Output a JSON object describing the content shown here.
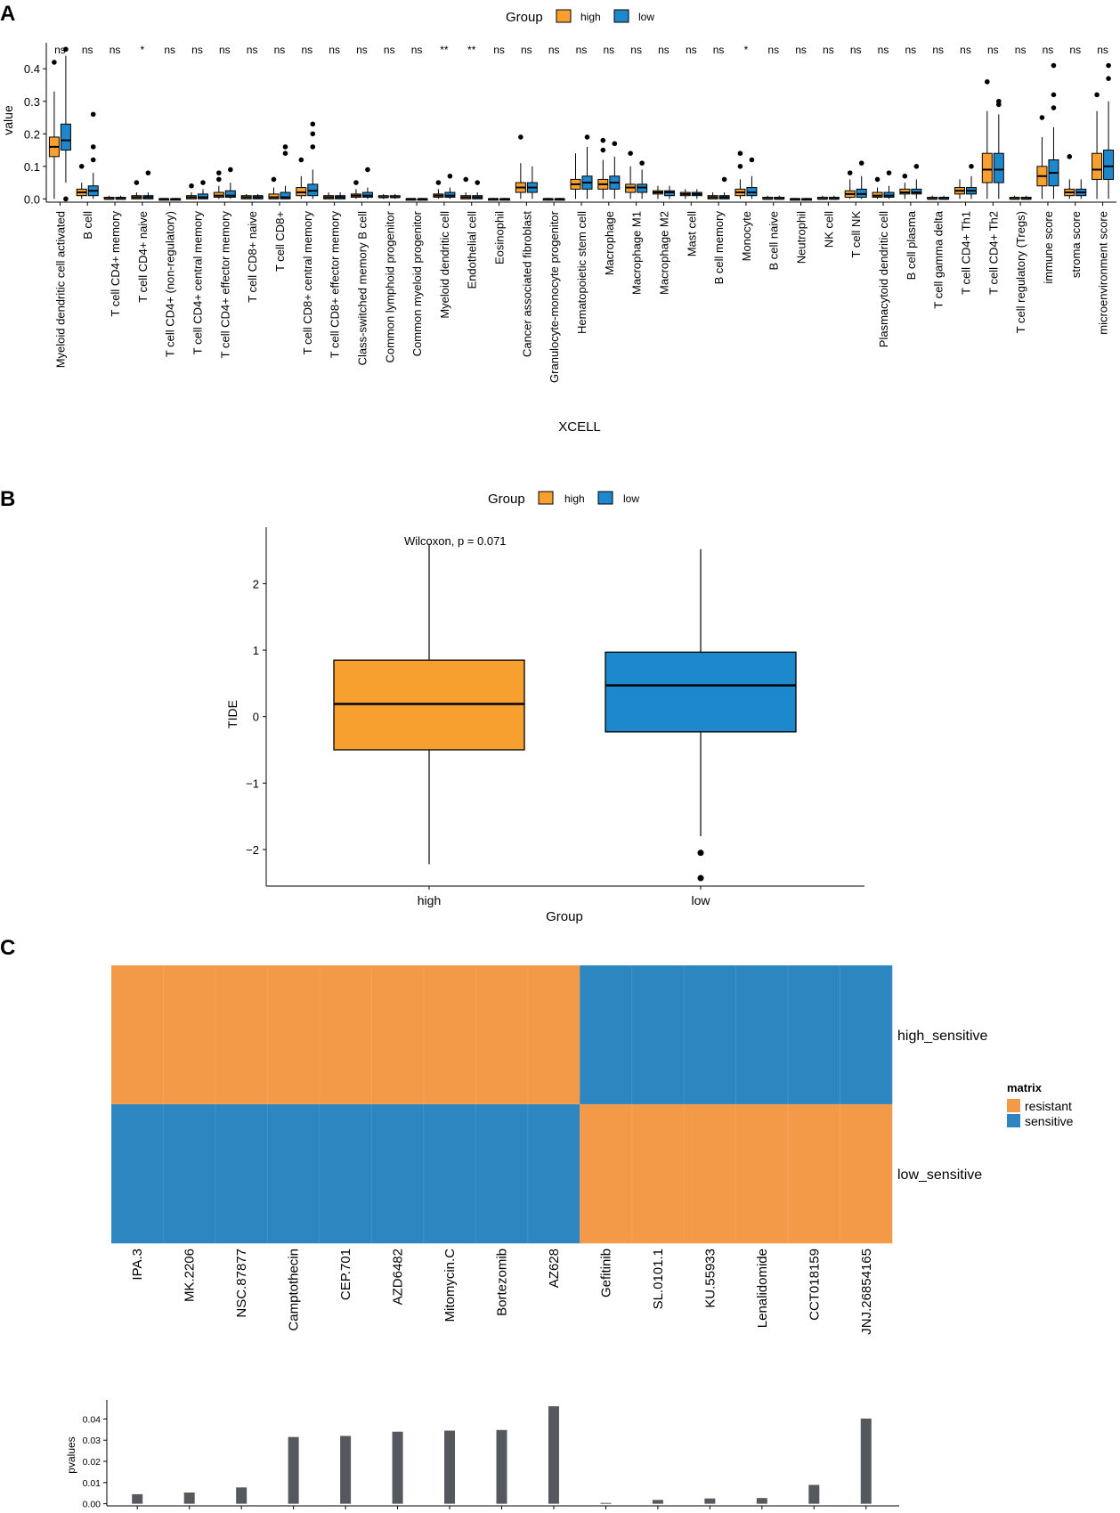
{
  "colors": {
    "high": "#F7A030",
    "low": "#1E88CC",
    "resistant": "#F39A48",
    "sensitive": "#2E86C0",
    "bar": "#55585C",
    "stroke": "#000000"
  },
  "chart_data": [
    {
      "panel": "A",
      "type": "box",
      "title": "",
      "xlabel": "XCELL",
      "ylabel": "value",
      "ylim": [
        -0.01,
        0.48
      ],
      "yticks": [
        "0.0",
        "0.1",
        "0.2",
        "0.3",
        "0.4"
      ],
      "legend": {
        "title": "Group",
        "entries": [
          "high",
          "low"
        ],
        "position": "top"
      },
      "categories": [
        "Myeloid dendritic cell activated",
        "B cell",
        "T cell CD4+ memory",
        "T cell CD4+ naive",
        "T cell CD4+ (non-regulatory)",
        "T cell CD4+ central memory",
        "T cell CD4+ effector memory",
        "T cell CD8+ naive",
        "T cell CD8+",
        "T cell CD8+ central memory",
        "T cell CD8+ effector memory",
        "Class-switched memory B cell",
        "Common lymphoid progenitor",
        "Common myeloid progenitor",
        "Myeloid dendritic cell",
        "Endothelial cell",
        "Eosinophil",
        "Cancer associated fibroblast",
        "Granulocyte-monocyte progenitor",
        "Hematopoietic stem cell",
        "Macrophage",
        "Macrophage M1",
        "Macrophage M2",
        "Mast cell",
        "B cell memory",
        "Monocyte",
        "B cell naive",
        "Neutrophil",
        "NK cell",
        "T cell NK",
        "Plasmacytoid dendritic cell",
        "B cell plasma",
        "T cell gamma delta",
        "T cell CD4+ Th1",
        "T cell CD4+ Th2",
        "T cell regulatory (Tregs)",
        "immune score",
        "stroma score",
        "microenvironment score"
      ],
      "significance": [
        "ns",
        "ns",
        "ns",
        "*",
        "ns",
        "ns",
        "ns",
        "ns",
        "ns",
        "ns",
        "ns",
        "ns",
        "ns",
        "ns",
        "**",
        "**",
        "ns",
        "ns",
        "ns",
        "ns",
        "ns",
        "ns",
        "ns",
        "ns",
        "ns",
        "*",
        "ns",
        "ns",
        "ns",
        "ns",
        "ns",
        "ns",
        "ns",
        "ns",
        "ns",
        "ns",
        "ns",
        "ns",
        "ns"
      ],
      "series": [
        {
          "name": "high",
          "boxes": [
            [
              0.0,
              0.13,
              0.16,
              0.19,
              0.33
            ],
            [
              0.0,
              0.01,
              0.02,
              0.03,
              0.05
            ],
            [
              0.0,
              0.0,
              0.0,
              0.005,
              0.01
            ],
            [
              0.0,
              0.0,
              0.005,
              0.01,
              0.02
            ],
            [
              0.0,
              0.0,
              0.0,
              0.0,
              0.003
            ],
            [
              0.0,
              0.0,
              0.005,
              0.01,
              0.02
            ],
            [
              0.0,
              0.005,
              0.01,
              0.02,
              0.04
            ],
            [
              0.0,
              0.0,
              0.005,
              0.01,
              0.015
            ],
            [
              0.0,
              0.0,
              0.005,
              0.015,
              0.035
            ],
            [
              0.0,
              0.01,
              0.02,
              0.035,
              0.07
            ],
            [
              0.0,
              0.0,
              0.005,
              0.01,
              0.02
            ],
            [
              0.0,
              0.005,
              0.01,
              0.015,
              0.03
            ],
            [
              0.0,
              0.005,
              0.005,
              0.01,
              0.015
            ],
            [
              0.0,
              0.0,
              0.0,
              0.0,
              0.003
            ],
            [
              0.0,
              0.005,
              0.01,
              0.015,
              0.03
            ],
            [
              0.0,
              0.0,
              0.005,
              0.01,
              0.02
            ],
            [
              0.0,
              0.0,
              0.0,
              0.0,
              0.003
            ],
            [
              0.0,
              0.02,
              0.035,
              0.05,
              0.11
            ],
            [
              0.0,
              0.0,
              0.0,
              0.0,
              0.003
            ],
            [
              0.0,
              0.03,
              0.045,
              0.06,
              0.14
            ],
            [
              0.0,
              0.03,
              0.045,
              0.06,
              0.12
            ],
            [
              0.0,
              0.02,
              0.035,
              0.045,
              0.1
            ],
            [
              0.0,
              0.015,
              0.02,
              0.025,
              0.04
            ],
            [
              0.0,
              0.01,
              0.015,
              0.02,
              0.03
            ],
            [
              0.0,
              0.0,
              0.005,
              0.01,
              0.02
            ],
            [
              0.0,
              0.01,
              0.02,
              0.03,
              0.06
            ],
            [
              0.0,
              0.0,
              0.0,
              0.005,
              0.01
            ],
            [
              0.0,
              0.0,
              0.0,
              0.0,
              0.003
            ],
            [
              0.0,
              0.0,
              0.0,
              0.005,
              0.01
            ],
            [
              0.0,
              0.005,
              0.015,
              0.025,
              0.06
            ],
            [
              0.0,
              0.005,
              0.01,
              0.02,
              0.035
            ],
            [
              0.0,
              0.015,
              0.02,
              0.03,
              0.05
            ],
            [
              0.0,
              0.0,
              0.0,
              0.005,
              0.01
            ],
            [
              0.0,
              0.015,
              0.025,
              0.035,
              0.06
            ],
            [
              0.0,
              0.05,
              0.09,
              0.14,
              0.27
            ],
            [
              0.0,
              0.0,
              0.0,
              0.005,
              0.01
            ],
            [
              0.0,
              0.04,
              0.07,
              0.1,
              0.19
            ],
            [
              0.0,
              0.01,
              0.02,
              0.03,
              0.06
            ],
            [
              0.0,
              0.06,
              0.09,
              0.14,
              0.27
            ]
          ]
        },
        {
          "name": "low",
          "boxes": [
            [
              0.05,
              0.15,
              0.18,
              0.23,
              0.44
            ],
            [
              0.0,
              0.01,
              0.025,
              0.04,
              0.08
            ],
            [
              0.0,
              0.0,
              0.0,
              0.005,
              0.01
            ],
            [
              0.0,
              0.0,
              0.005,
              0.01,
              0.02
            ],
            [
              0.0,
              0.0,
              0.0,
              0.0,
              0.003
            ],
            [
              0.0,
              0.0,
              0.005,
              0.015,
              0.03
            ],
            [
              0.0,
              0.005,
              0.01,
              0.025,
              0.05
            ],
            [
              0.0,
              0.0,
              0.005,
              0.01,
              0.015
            ],
            [
              0.0,
              0.0,
              0.005,
              0.02,
              0.04
            ],
            [
              0.0,
              0.01,
              0.025,
              0.045,
              0.09
            ],
            [
              0.0,
              0.0,
              0.005,
              0.01,
              0.02
            ],
            [
              0.0,
              0.005,
              0.01,
              0.02,
              0.035
            ],
            [
              0.0,
              0.005,
              0.005,
              0.01,
              0.015
            ],
            [
              0.0,
              0.0,
              0.0,
              0.0,
              0.003
            ],
            [
              0.0,
              0.005,
              0.01,
              0.02,
              0.035
            ],
            [
              0.0,
              0.0,
              0.005,
              0.01,
              0.02
            ],
            [
              0.0,
              0.0,
              0.0,
              0.0,
              0.003
            ],
            [
              0.0,
              0.02,
              0.035,
              0.05,
              0.1
            ],
            [
              0.0,
              0.0,
              0.0,
              0.0,
              0.003
            ],
            [
              0.0,
              0.03,
              0.05,
              0.07,
              0.16
            ],
            [
              0.0,
              0.03,
              0.05,
              0.07,
              0.13
            ],
            [
              0.0,
              0.02,
              0.035,
              0.045,
              0.09
            ],
            [
              0.0,
              0.01,
              0.02,
              0.025,
              0.04
            ],
            [
              0.0,
              0.01,
              0.015,
              0.02,
              0.03
            ],
            [
              0.0,
              0.0,
              0.005,
              0.01,
              0.02
            ],
            [
              0.0,
              0.01,
              0.02,
              0.035,
              0.07
            ],
            [
              0.0,
              0.0,
              0.0,
              0.005,
              0.01
            ],
            [
              0.0,
              0.0,
              0.0,
              0.0,
              0.003
            ],
            [
              0.0,
              0.0,
              0.0,
              0.005,
              0.01
            ],
            [
              0.0,
              0.005,
              0.015,
              0.03,
              0.07
            ],
            [
              0.0,
              0.005,
              0.01,
              0.02,
              0.04
            ],
            [
              0.0,
              0.015,
              0.02,
              0.03,
              0.06
            ],
            [
              0.0,
              0.0,
              0.0,
              0.005,
              0.01
            ],
            [
              0.0,
              0.015,
              0.025,
              0.035,
              0.07
            ],
            [
              0.0,
              0.05,
              0.09,
              0.14,
              0.26
            ],
            [
              0.0,
              0.0,
              0.0,
              0.005,
              0.01
            ],
            [
              0.0,
              0.04,
              0.08,
              0.12,
              0.22
            ],
            [
              0.0,
              0.01,
              0.02,
              0.03,
              0.06
            ],
            [
              0.0,
              0.06,
              0.1,
              0.15,
              0.3
            ]
          ]
        }
      ],
      "outliers": {
        "high": [
          [
            0,
            0.42
          ],
          [
            1,
            0.1
          ],
          [
            3,
            0.05
          ],
          [
            5,
            0.04
          ],
          [
            6,
            0.06
          ],
          [
            6,
            0.08
          ],
          [
            8,
            0.06
          ],
          [
            9,
            0.12
          ],
          [
            11,
            0.05
          ],
          [
            14,
            0.05
          ],
          [
            15,
            0.06
          ],
          [
            17,
            0.19
          ],
          [
            20,
            0.15
          ],
          [
            20,
            0.18
          ],
          [
            21,
            0.14
          ],
          [
            25,
            0.1
          ],
          [
            25,
            0.14
          ],
          [
            29,
            0.08
          ],
          [
            30,
            0.06
          ],
          [
            31,
            0.07
          ],
          [
            34,
            0.36
          ],
          [
            36,
            0.25
          ],
          [
            37,
            0.13
          ],
          [
            38,
            0.32
          ]
        ],
        "low": [
          [
            0,
            0.46
          ],
          [
            0,
            0.0
          ],
          [
            1,
            0.26
          ],
          [
            1,
            0.16
          ],
          [
            1,
            0.12
          ],
          [
            3,
            0.08
          ],
          [
            5,
            0.05
          ],
          [
            6,
            0.09
          ],
          [
            8,
            0.16
          ],
          [
            8,
            0.14
          ],
          [
            9,
            0.23
          ],
          [
            9,
            0.2
          ],
          [
            9,
            0.16
          ],
          [
            11,
            0.09
          ],
          [
            14,
            0.07
          ],
          [
            15,
            0.05
          ],
          [
            19,
            0.19
          ],
          [
            20,
            0.17
          ],
          [
            21,
            0.11
          ],
          [
            24,
            0.06
          ],
          [
            25,
            0.12
          ],
          [
            29,
            0.11
          ],
          [
            30,
            0.08
          ],
          [
            31,
            0.1
          ],
          [
            33,
            0.1
          ],
          [
            34,
            0.3
          ],
          [
            34,
            0.29
          ],
          [
            36,
            0.41
          ],
          [
            36,
            0.32
          ],
          [
            36,
            0.28
          ],
          [
            38,
            0.41
          ],
          [
            38,
            0.37
          ]
        ]
      }
    },
    {
      "panel": "B",
      "type": "box",
      "title": "",
      "annotation": "Wilcoxon, p = 0.071",
      "xlabel": "Group",
      "ylabel": "TIDE",
      "ylim": [
        -2.55,
        2.85
      ],
      "yticks": [
        "2",
        "1",
        "0",
        "−1",
        "−2"
      ],
      "ytick_values": [
        2,
        1,
        0,
        -1,
        -2
      ],
      "legend": {
        "title": "Group",
        "entries": [
          "high",
          "low"
        ],
        "position": "top"
      },
      "categories": [
        "high",
        "low"
      ],
      "boxes": [
        [
          -2.22,
          -0.5,
          0.19,
          0.85,
          2.6
        ],
        [
          -1.8,
          -0.23,
          0.47,
          0.97,
          2.52
        ]
      ],
      "outliers": [
        [
          1,
          -2.05
        ],
        [
          1,
          -2.43
        ]
      ]
    },
    {
      "panel": "C",
      "type": "heatmap",
      "title": "",
      "legend": {
        "title": "matrix",
        "entries": [
          "resistant",
          "sensitive"
        ],
        "position": "right"
      },
      "rows": [
        "high_sensitive",
        "low_sensitive"
      ],
      "columns": [
        "IPA.3",
        "MK.2206",
        "NSC.87877",
        "Camptothecin",
        "CEP.701",
        "AZD6482",
        "Mitomycin.C",
        "Bortezomib",
        "AZ628",
        "Gefitinib",
        "SL.0101.1",
        "KU.55933",
        "Lenalidomide",
        "CCT018159",
        "JNJ.26854165"
      ],
      "values": [
        [
          "resistant",
          "resistant",
          "resistant",
          "resistant",
          "resistant",
          "resistant",
          "resistant",
          "resistant",
          "resistant",
          "sensitive",
          "sensitive",
          "sensitive",
          "sensitive",
          "sensitive",
          "sensitive"
        ],
        [
          "sensitive",
          "sensitive",
          "sensitive",
          "sensitive",
          "sensitive",
          "sensitive",
          "sensitive",
          "sensitive",
          "sensitive",
          "resistant",
          "resistant",
          "resistant",
          "resistant",
          "resistant",
          "resistant"
        ]
      ]
    },
    {
      "panel": "C-bar",
      "type": "bar",
      "title": "",
      "xlabel": "",
      "ylabel": "pvalues",
      "ylim": [
        -0.001,
        0.049
      ],
      "yticks": [
        "0.04",
        "0.03",
        "0.02",
        "0.01",
        "0.00"
      ],
      "ytick_values": [
        0.04,
        0.03,
        0.02,
        0.01,
        0.0
      ],
      "categories": [
        "IPA.3",
        "MK.2206",
        "NSC.87877",
        "Camptothecin",
        "CEP.701",
        "AZD6482",
        "Mitomycin.C",
        "Bortezomib",
        "AZ628",
        "Gefitinib",
        "SL.0101.1",
        "KU.55933",
        "Lenalidomide",
        "CCT018159",
        "JNJ.26854165"
      ],
      "values": [
        0.0045,
        0.0053,
        0.0077,
        0.0315,
        0.032,
        0.034,
        0.0345,
        0.0348,
        0.046,
        0.0004,
        0.0018,
        0.0025,
        0.0027,
        0.0089,
        0.0402
      ]
    }
  ],
  "labels": {
    "panel_a": "A",
    "panel_b": "B",
    "panel_c": "C"
  }
}
